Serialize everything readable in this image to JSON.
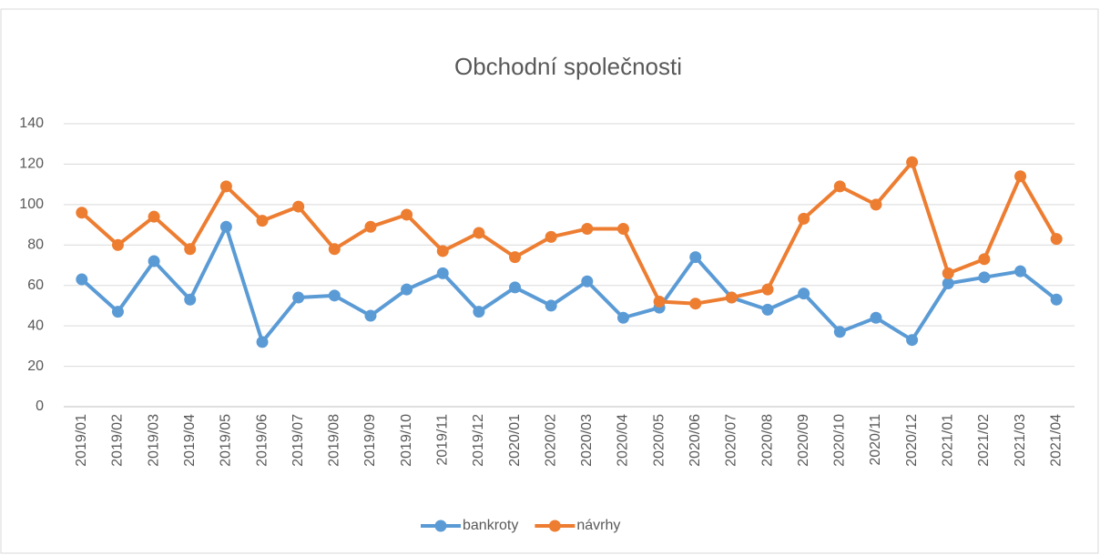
{
  "chart_data": {
    "type": "line",
    "title": "Obchodní společnosti",
    "categories": [
      "2019/01",
      "2019/02",
      "2019/03",
      "2019/04",
      "2019/05",
      "2019/06",
      "2019/07",
      "2019/08",
      "2019/09",
      "2019/10",
      "2019/11",
      "2019/12",
      "2020/01",
      "2020/02",
      "2020/03",
      "2020/04",
      "2020/05",
      "2020/06",
      "2020/07",
      "2020/08",
      "2020/09",
      "2020/10",
      "2020/11",
      "2020/12",
      "2021/01",
      "2021/02",
      "2021/03",
      "2021/04"
    ],
    "series": [
      {
        "name": "bankroty",
        "color": "#5b9bd5",
        "values": [
          63,
          47,
          72,
          53,
          89,
          32,
          54,
          55,
          45,
          58,
          66,
          47,
          59,
          50,
          62,
          44,
          49,
          74,
          54,
          48,
          56,
          37,
          44,
          33,
          61,
          64,
          67,
          53
        ]
      },
      {
        "name": "návrhy",
        "color": "#ed7d31",
        "values": [
          96,
          80,
          94,
          78,
          109,
          92,
          99,
          78,
          89,
          95,
          77,
          86,
          74,
          84,
          88,
          88,
          52,
          51,
          54,
          58,
          93,
          109,
          100,
          121,
          66,
          73,
          114,
          83
        ]
      }
    ],
    "ylim": [
      0,
      140
    ],
    "yticks": [
      0,
      20,
      40,
      60,
      80,
      100,
      120,
      140
    ],
    "grid": true,
    "legend": "bottom"
  }
}
